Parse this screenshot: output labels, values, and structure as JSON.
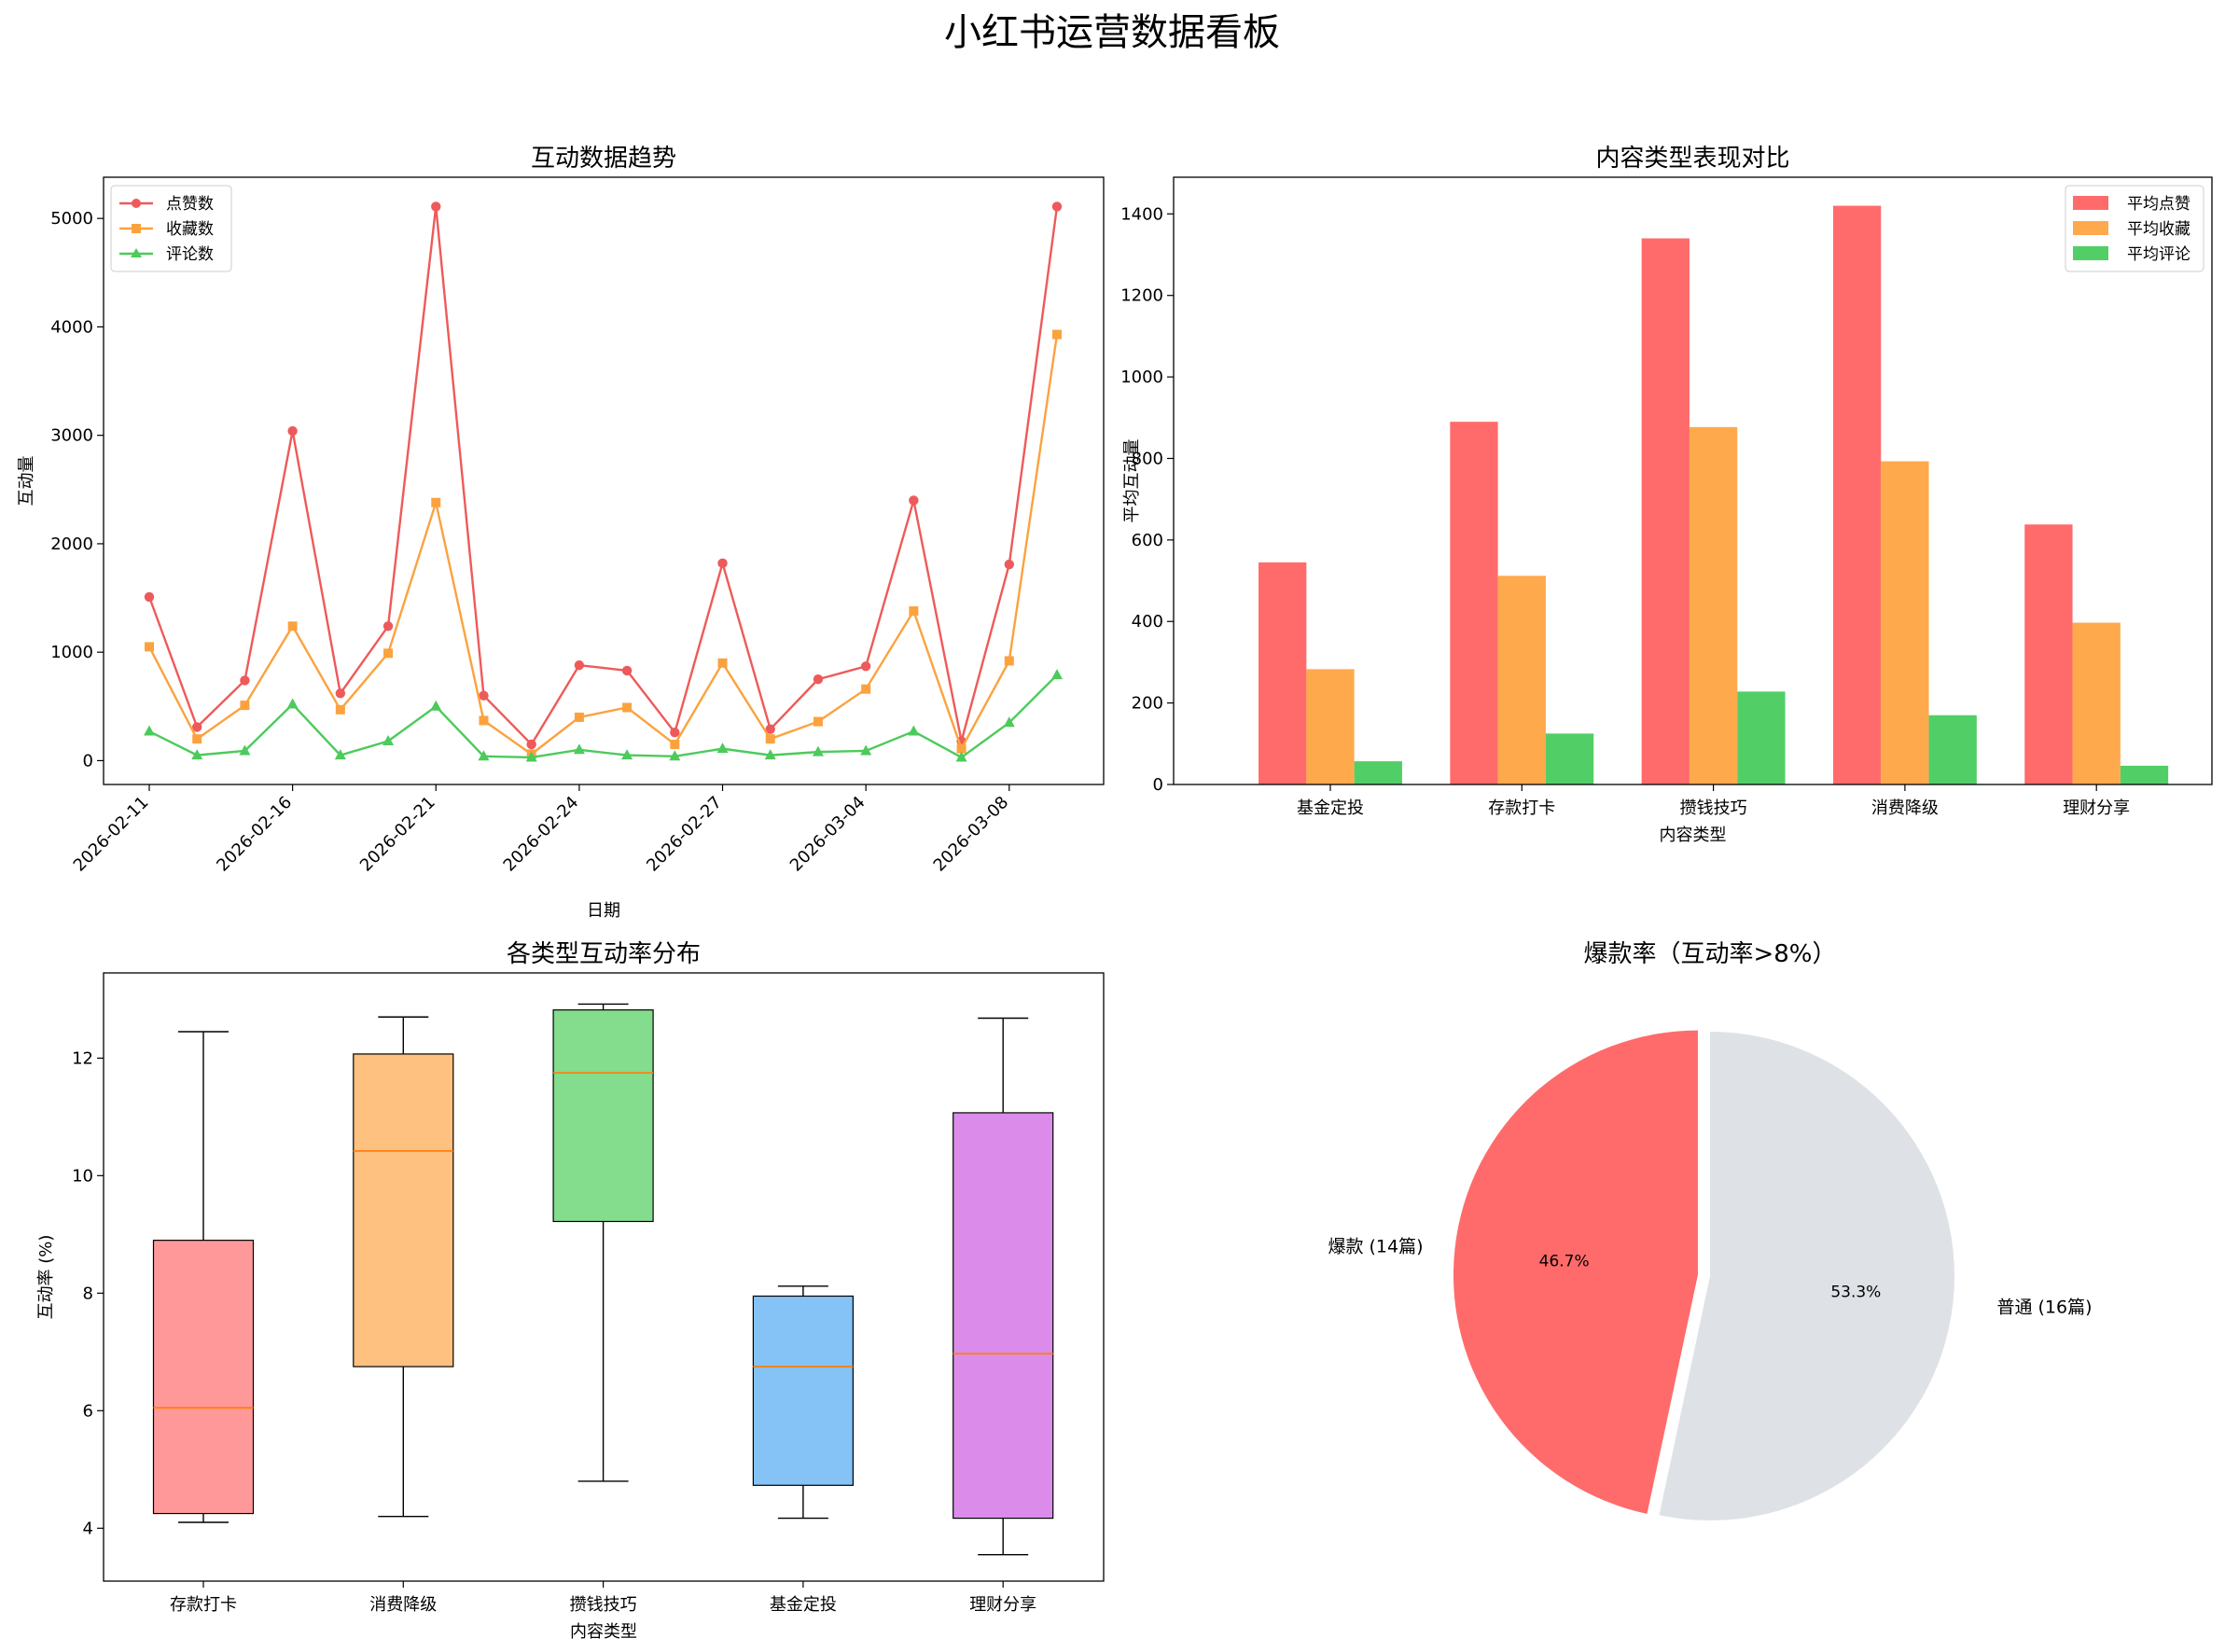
{
  "page_title": "小红书运营数据看板",
  "chart_data": [
    {
      "type": "line",
      "title": "互动数据趋势",
      "xlabel": "日期",
      "ylabel": "互动量",
      "x": [
        "2026-02-11",
        "2026-02-13",
        "2026-02-14",
        "2026-02-16",
        "2026-02-17",
        "2026-02-19",
        "2026-02-21",
        "2026-02-22",
        "2026-02-23",
        "2026-02-24",
        "2026-02-25",
        "2026-02-26",
        "2026-02-27",
        "2026-02-28",
        "2026-03-01",
        "2026-03-04",
        "2026-03-05",
        "2026-03-06",
        "2026-03-08",
        "2026-03-09"
      ],
      "xticks": [
        "2026-02-11",
        "2026-02-16",
        "2026-02-21",
        "2026-02-24",
        "2026-02-27",
        "2026-03-04",
        "2026-03-08"
      ],
      "ylim": [
        -220,
        5380
      ],
      "yticks": [
        0,
        1000,
        2000,
        3000,
        4000,
        5000
      ],
      "legend_position": "top-left",
      "grid": false,
      "series": [
        {
          "name": "点赞数",
          "color": "#ee5a5a",
          "marker": "circle",
          "values": [
            1510,
            310,
            740,
            3040,
            620,
            1240,
            5110,
            600,
            150,
            880,
            830,
            260,
            1820,
            290,
            750,
            870,
            2400,
            180,
            1810,
            5110
          ]
        },
        {
          "name": "收藏数",
          "color": "#fba23f",
          "marker": "square",
          "values": [
            1050,
            200,
            510,
            1240,
            470,
            990,
            2380,
            370,
            60,
            400,
            490,
            150,
            900,
            200,
            360,
            660,
            1380,
            110,
            920,
            3930
          ]
        },
        {
          "name": "评论数",
          "color": "#4dca5c",
          "marker": "triangle",
          "values": [
            270,
            50,
            90,
            520,
            50,
            180,
            500,
            40,
            30,
            100,
            50,
            40,
            110,
            50,
            80,
            90,
            270,
            30,
            350,
            790
          ]
        }
      ]
    },
    {
      "type": "bar",
      "title": "内容类型表现对比",
      "xlabel": "内容类型",
      "ylabel": "平均互动量",
      "categories": [
        "基金定投",
        "存款打卡",
        "攒钱技巧",
        "消费降级",
        "理财分享"
      ],
      "ylim": [
        0,
        1490
      ],
      "yticks": [
        0,
        200,
        400,
        600,
        800,
        1000,
        1200,
        1400
      ],
      "legend_position": "top-right",
      "grid": false,
      "series": [
        {
          "name": "平均点赞",
          "color": "#ff6b6b",
          "values": [
            545,
            890,
            1340,
            1420,
            638
          ]
        },
        {
          "name": "平均收藏",
          "color": "#ffa94d",
          "values": [
            283,
            512,
            877,
            793,
            397
          ]
        },
        {
          "name": "平均评论",
          "color": "#51cf66",
          "values": [
            57,
            125,
            228,
            170,
            46
          ]
        }
      ]
    },
    {
      "type": "box",
      "title": "各类型互动率分布",
      "xlabel": "内容类型",
      "ylabel": "互动率 (%)",
      "categories": [
        "存款打卡",
        "消费降级",
        "攒钱技巧",
        "基金定投",
        "理财分享"
      ],
      "ylim": [
        3.1,
        13.45
      ],
      "yticks": [
        4,
        6,
        8,
        10,
        12
      ],
      "grid": false,
      "boxes": [
        {
          "min": 4.1,
          "q1": 4.25,
          "median": 6.05,
          "q3": 8.9,
          "max": 12.45,
          "color": "#ff9999"
        },
        {
          "min": 4.2,
          "q1": 6.75,
          "median": 10.42,
          "q3": 12.07,
          "max": 12.7,
          "color": "#ffc180"
        },
        {
          "min": 4.8,
          "q1": 9.22,
          "median": 11.75,
          "q3": 12.82,
          "max": 12.92,
          "color": "#84dc8d"
        },
        {
          "min": 4.17,
          "q1": 4.73,
          "median": 6.75,
          "q3": 7.95,
          "max": 8.12,
          "color": "#85c2f6"
        },
        {
          "min": 3.55,
          "q1": 4.17,
          "median": 6.97,
          "q3": 11.07,
          "max": 12.68,
          "color": "#db8ceb"
        }
      ]
    },
    {
      "type": "pie",
      "title": "爆款率（互动率>8%）",
      "slices": [
        {
          "label": "爆款 (14篇)",
          "value": 14,
          "pct_label": "46.7%",
          "color": "#ff6b6b",
          "exploded": true
        },
        {
          "label": "普通 (16篇)",
          "value": 16,
          "pct_label": "53.3%",
          "color": "#dee2e6",
          "exploded": false
        }
      ]
    }
  ]
}
